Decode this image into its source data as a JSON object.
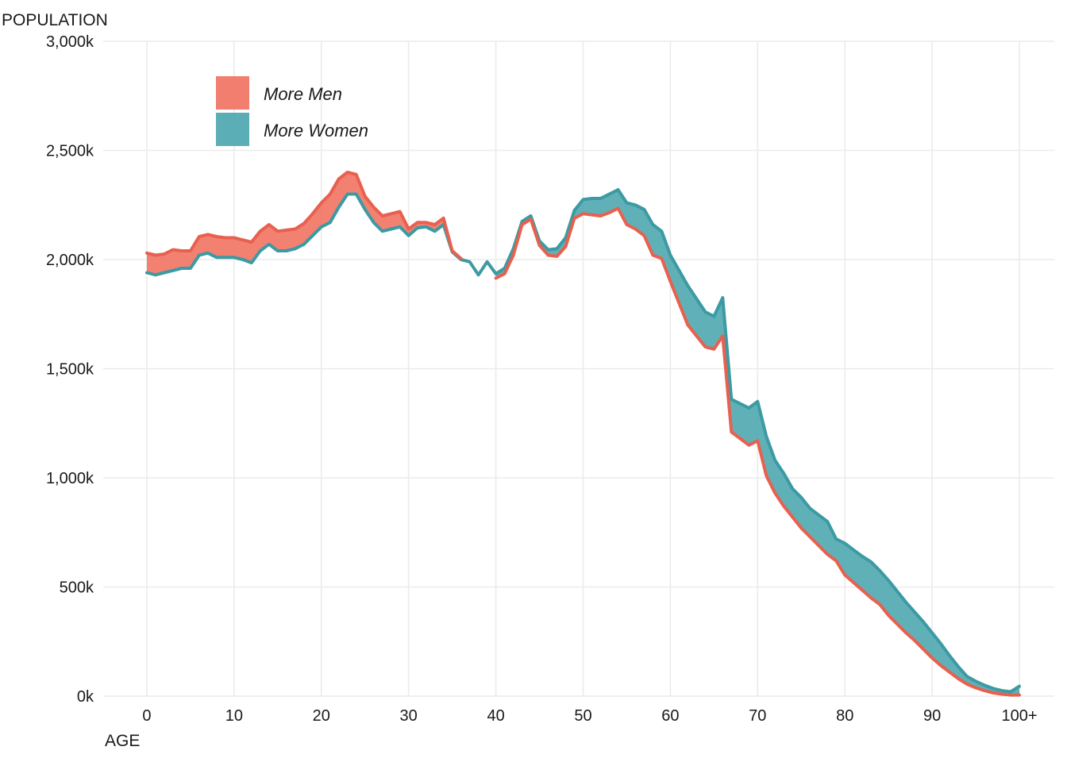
{
  "chart_data": {
    "type": "area",
    "title": "",
    "xlabel": "AGE",
    "ylabel": "POPULATION",
    "xlim": [
      -5,
      104
    ],
    "ylim": [
      0,
      3000
    ],
    "x_ticks": [
      0,
      10,
      20,
      30,
      40,
      50,
      60,
      70,
      80,
      90,
      100
    ],
    "x_tick_labels": [
      "0",
      "10",
      "20",
      "30",
      "40",
      "50",
      "60",
      "70",
      "80",
      "90",
      "100+"
    ],
    "y_ticks": [
      0,
      500,
      1000,
      1500,
      2000,
      2500,
      3000
    ],
    "y_tick_labels": [
      "0k",
      "500k",
      "1,000k",
      "1,500k",
      "2,000k",
      "2,500k",
      "3,000k"
    ],
    "grid": true,
    "legend_position": "top-left",
    "colors": {
      "more_men": "#F0705E",
      "more_women": "#4AA5AE",
      "men_line": "#E8604E",
      "women_line": "#3C9AA3"
    },
    "legend": [
      "More Men",
      "More Women"
    ],
    "x": [
      0,
      1,
      2,
      3,
      4,
      5,
      6,
      7,
      8,
      9,
      10,
      11,
      12,
      13,
      14,
      15,
      16,
      17,
      18,
      19,
      20,
      21,
      22,
      23,
      24,
      25,
      26,
      27,
      28,
      29,
      30,
      31,
      32,
      33,
      34,
      35,
      36,
      37,
      38,
      39,
      40,
      41,
      42,
      43,
      44,
      45,
      46,
      47,
      48,
      49,
      50,
      51,
      52,
      53,
      54,
      55,
      56,
      57,
      58,
      59,
      60,
      61,
      62,
      63,
      64,
      65,
      66,
      67,
      68,
      69,
      70,
      71,
      72,
      73,
      74,
      75,
      76,
      77,
      78,
      79,
      80,
      81,
      82,
      83,
      84,
      85,
      86,
      87,
      88,
      89,
      90,
      91,
      92,
      93,
      94,
      95,
      96,
      97,
      98,
      99,
      100
    ],
    "series": [
      {
        "name": "Men",
        "values": [
          2030,
          2020,
          2025,
          2045,
          2040,
          2040,
          2105,
          2115,
          2105,
          2100,
          2100,
          2090,
          2080,
          2130,
          2160,
          2130,
          2135,
          2140,
          2165,
          2210,
          2260,
          2300,
          2370,
          2400,
          2390,
          2290,
          2240,
          2200,
          2210,
          2220,
          2140,
          2170,
          2170,
          2160,
          2190,
          2040,
          2005,
          null,
          null,
          null,
          1915,
          1935,
          2020,
          2160,
          2185,
          2065,
          2020,
          2015,
          2060,
          2190,
          2210,
          2205,
          2200,
          2215,
          2235,
          2160,
          2140,
          2110,
          2020,
          2005,
          1900,
          1800,
          1700,
          1650,
          1600,
          1590,
          1650,
          1210,
          1180,
          1150,
          1170,
          1010,
          930,
          870,
          820,
          770,
          730,
          690,
          650,
          620,
          555,
          520,
          485,
          450,
          420,
          370,
          330,
          290,
          255,
          215,
          175,
          140,
          110,
          80,
          55,
          38,
          25,
          15,
          9,
          5,
          5
        ]
      },
      {
        "name": "Women",
        "values": [
          1940,
          1930,
          1940,
          1950,
          1960,
          1960,
          2020,
          2030,
          2010,
          2010,
          2010,
          2000,
          1985,
          2040,
          2070,
          2040,
          2040,
          2050,
          2070,
          2110,
          2150,
          2170,
          2240,
          2300,
          2300,
          2230,
          2170,
          2130,
          2140,
          2150,
          2110,
          2145,
          2150,
          2130,
          2160,
          2035,
          2000,
          1990,
          1930,
          1990,
          1935,
          1960,
          2050,
          2175,
          2200,
          2085,
          2045,
          2050,
          2100,
          2225,
          2275,
          2280,
          2280,
          2300,
          2320,
          2260,
          2250,
          2230,
          2160,
          2130,
          2020,
          1950,
          1880,
          1820,
          1760,
          1740,
          1825,
          1360,
          1340,
          1320,
          1350,
          1190,
          1080,
          1020,
          950,
          910,
          860,
          830,
          800,
          720,
          700,
          670,
          640,
          615,
          575,
          530,
          480,
          430,
          385,
          340,
          290,
          240,
          185,
          135,
          90,
          68,
          50,
          35,
          25,
          20,
          45
        ]
      }
    ]
  }
}
